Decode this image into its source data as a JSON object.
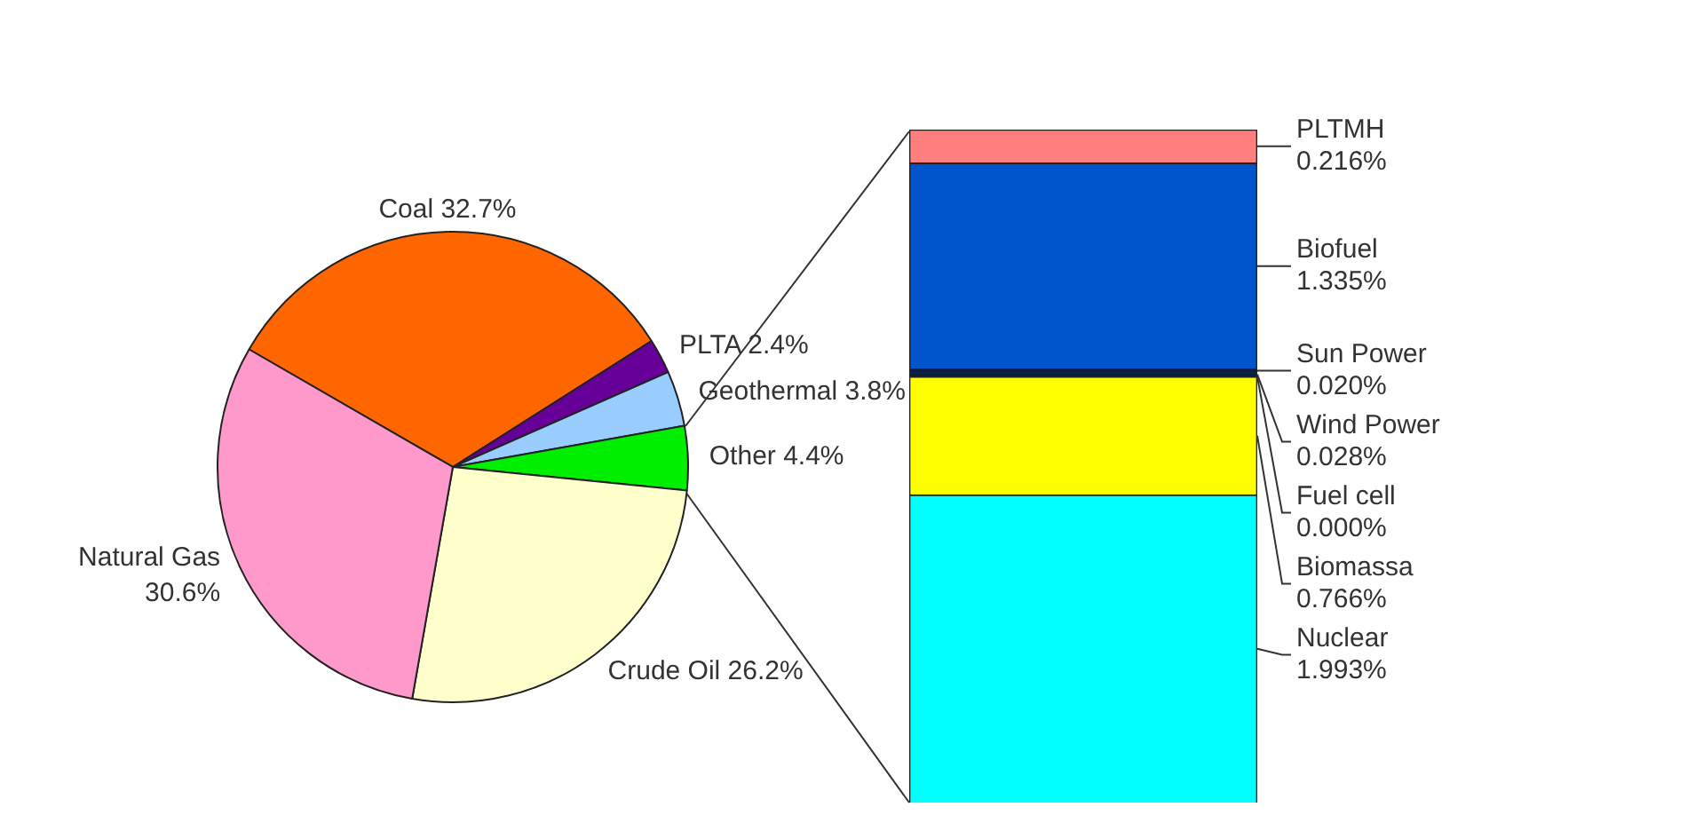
{
  "chart_data": [
    {
      "type": "pie",
      "categories": [
        "Coal",
        "PLTA",
        "Geothermal",
        "Other",
        "Crude Oil",
        "Natural Gas"
      ],
      "values": [
        32.7,
        2.4,
        3.8,
        4.4,
        26.2,
        30.6
      ],
      "colors": [
        "#ff6600",
        "#660099",
        "#99ccff",
        "#00ee00",
        "#ffffcc",
        "#ff99cc"
      ],
      "value_labels": [
        "32.7%",
        "2.4%",
        "3.8%",
        "4.4%",
        "26.2%",
        "30.6%"
      ]
    },
    {
      "type": "bar",
      "stacked": true,
      "data_labels": true,
      "categories": [
        null
      ],
      "series": [
        {
          "name": "Nuclear",
          "color": "#00ffff",
          "values": [
            1.993
          ],
          "value_labels": [
            "1.993%"
          ]
        },
        {
          "name": "Biomassa",
          "color": "#ffff00",
          "values": [
            0.766
          ],
          "value_labels": [
            "0.766%"
          ]
        },
        {
          "name": "Fuel cell",
          "color": "#000000",
          "values": [
            0.0
          ],
          "value_labels": [
            "0.000%"
          ]
        },
        {
          "name": "Wind Power",
          "color": "#002244",
          "values": [
            0.028
          ],
          "value_labels": [
            "0.028%"
          ]
        },
        {
          "name": "Sun Power",
          "color": "#001a66",
          "values": [
            0.02
          ],
          "value_labels": [
            "0.020%"
          ]
        },
        {
          "name": "Biofuel",
          "color": "#0055cc",
          "values": [
            1.335
          ],
          "value_labels": [
            "1.335%"
          ]
        },
        {
          "name": "PLTMH",
          "color": "#ff7f7f",
          "values": [
            0.216
          ],
          "value_labels": [
            "0.216%"
          ]
        }
      ]
    }
  ]
}
